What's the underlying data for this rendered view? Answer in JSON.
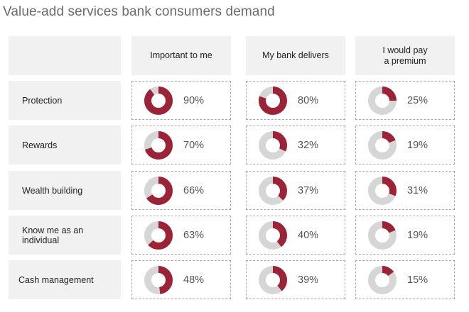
{
  "title": "Value-add services bank consumers demand",
  "colors": {
    "accent": "#9b2335",
    "track": "#d6d6d6"
  },
  "chart_data": {
    "type": "table",
    "title": "Value-add services bank consumers demand",
    "columns": [
      "Important to me",
      "My bank delivers",
      "I would pay\na premium"
    ],
    "rows": [
      {
        "label": "Protection",
        "values": [
          90,
          80,
          25
        ]
      },
      {
        "label": "Rewards",
        "values": [
          70,
          32,
          19
        ]
      },
      {
        "label": "Wealth building",
        "values": [
          66,
          37,
          31
        ]
      },
      {
        "label": "Know me as an individual",
        "values": [
          63,
          40,
          19
        ]
      },
      {
        "label": "Cash management",
        "values": [
          48,
          39,
          15
        ]
      }
    ],
    "unit": "%"
  }
}
